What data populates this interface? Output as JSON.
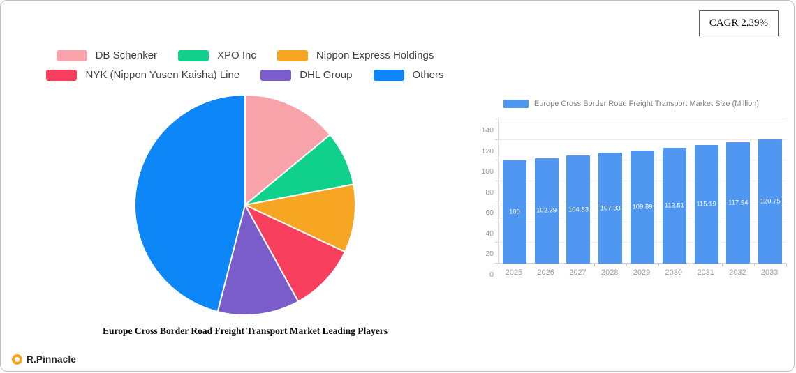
{
  "window": {
    "cagr_label": "CAGR 2.39%"
  },
  "branding": {
    "logo_text": "R.Pinnacle"
  },
  "chart_data": [
    {
      "type": "pie",
      "title": "Europe Cross Border Road Freight Transport Market Leading Players",
      "labels": [
        "DB Schenker",
        "XPO Inc",
        "Nippon Express Holdings",
        "NYK (Nippon Yusen Kaisha) Line",
        "DHL Group",
        "Others"
      ],
      "values": [
        14,
        8,
        10,
        10,
        12,
        46
      ],
      "colors": [
        "#f7a3a9",
        "#10d18c",
        "#f6a623",
        "#f83f5d",
        "#7a5ccb",
        "#0d86f8"
      ],
      "legend_position": "top",
      "legend_rows": 2
    },
    {
      "type": "bar",
      "legend": "Europe Cross Border Road Freight Transport Market Size (Million)",
      "categories": [
        "2025",
        "2026",
        "2027",
        "2028",
        "2029",
        "2030",
        "2031",
        "2032",
        "2033"
      ],
      "values": [
        100,
        102.39,
        104.83,
        107.33,
        109.89,
        112.51,
        115.19,
        117.94,
        120.75
      ],
      "value_labels": [
        "100",
        "102.39",
        "104.83",
        "107.33",
        "109.89",
        "112.51",
        "115.19",
        "117.94",
        "120.75"
      ],
      "bar_color": "#4f97f0",
      "ylim": [
        0,
        140
      ],
      "yticks": [
        0,
        20,
        40,
        60,
        80,
        100,
        120,
        140
      ],
      "grid": true,
      "legend_position": "top"
    }
  ]
}
